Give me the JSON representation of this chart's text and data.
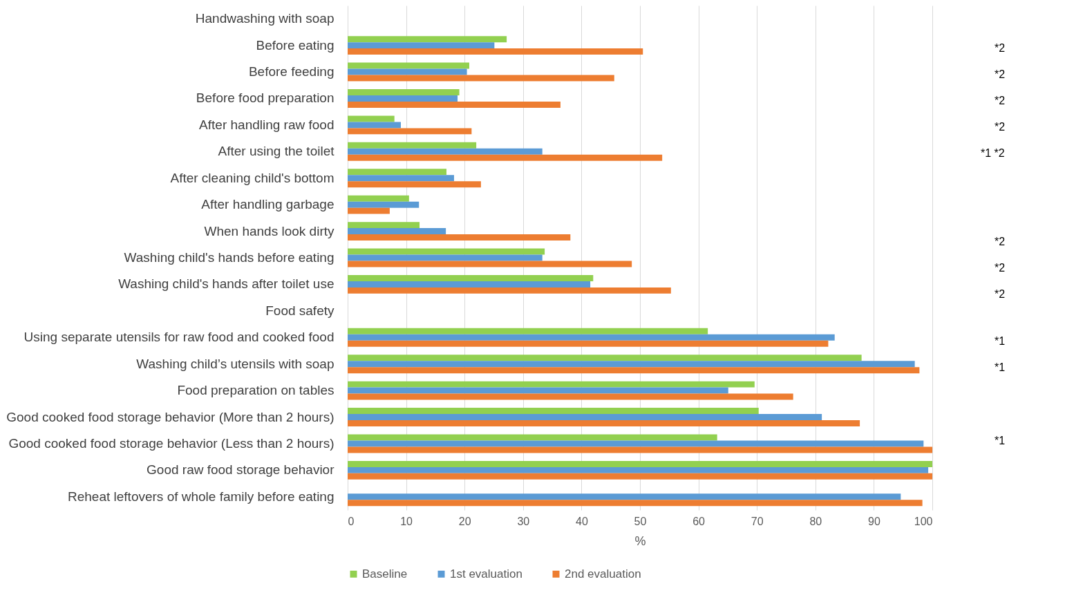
{
  "chart_data": {
    "type": "bar",
    "orientation": "horizontal",
    "xlabel": "%",
    "categories": [
      "Handwashing with soap",
      "Before eating",
      "Before feeding",
      "Before food preparation",
      "After handling raw food",
      "After using the toilet",
      "After cleaning child's bottom",
      "After handling garbage",
      "When hands look dirty",
      "Washing child's hands before eating",
      "Washing child's hands after toilet use",
      "Food safety",
      "Using separate utensils for raw food and cooked food",
      "Washing child’s utensils with soap",
      "Food preparation on tables",
      "Good cooked food storage behavior (More than 2 hours)",
      "Good cooked food storage behavior  (Less than 2 hours)",
      "Good raw food storage behavior",
      "Reheat leftovers of whole family before eating"
    ],
    "series": [
      {
        "name": "Baseline",
        "color": "#92d050",
        "values": [
          null,
          27.2,
          20.8,
          19.1,
          8.0,
          22.0,
          16.9,
          10.5,
          12.3,
          33.7,
          42.0,
          null,
          61.6,
          87.9,
          69.6,
          70.3,
          63.2,
          100,
          null
        ]
      },
      {
        "name": "1st evaluation",
        "color": "#5b9bd5",
        "values": [
          null,
          25.1,
          20.4,
          18.8,
          9.1,
          33.3,
          18.2,
          12.2,
          16.8,
          33.3,
          41.5,
          null,
          83.3,
          97.0,
          65.1,
          81.1,
          98.5,
          99.3,
          94.6
        ]
      },
      {
        "name": "2nd evaluation",
        "color": "#ed7d31",
        "values": [
          null,
          50.5,
          45.6,
          36.4,
          21.2,
          53.8,
          22.8,
          7.2,
          38.1,
          48.6,
          55.3,
          null,
          82.2,
          97.8,
          76.2,
          87.6,
          100,
          100,
          98.3
        ]
      }
    ],
    "xlim": [
      0,
      100
    ],
    "xticks": [
      0,
      10,
      20,
      30,
      40,
      50,
      60,
      70,
      80,
      90,
      100
    ],
    "grid": "x",
    "legend": "bottom",
    "annotations": [
      "*2",
      "*2",
      "*2",
      "*2",
      "*1 *2",
      "*2",
      "*2",
      "*2",
      "*1",
      "*1",
      "*1"
    ]
  }
}
